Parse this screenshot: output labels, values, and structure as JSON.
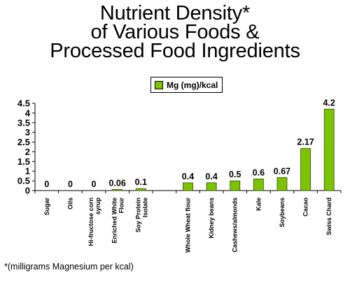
{
  "chart_data": {
    "type": "bar",
    "title": [
      "Nutrient Density*",
      "of Various Foods &",
      "Processed Food Ingredients"
    ],
    "categories": [
      "Sugar",
      "Oils",
      "Hi-fructose corn syrup",
      "Enriched White Flour",
      "Soy Protein Isolate",
      "",
      "Whole Wheat flour",
      "Kidney beans",
      "Cashews/almonds",
      "Kale",
      "Soybeans",
      "Cacao",
      "Swiss Chard"
    ],
    "series": [
      {
        "name": "Mg (mg)/kcal",
        "values": [
          0,
          0,
          0,
          0.06,
          0.1,
          null,
          0.4,
          0.4,
          0.5,
          0.6,
          0.67,
          2.17,
          4.2
        ]
      }
    ],
    "data_labels": [
      "0",
      "0",
      "0",
      "0.06",
      "0.1",
      "",
      "0.4",
      "0.4",
      "0.5",
      "0.6",
      "0.67",
      "2.17",
      "4.2"
    ],
    "yticks": [
      "0",
      "0.5",
      "1",
      "1.5",
      "2",
      "2.5",
      "3",
      "3.5",
      "4",
      "4.5"
    ],
    "ylim": [
      0,
      4.5
    ],
    "grid": false,
    "legend_position": "top-right",
    "bar_color": "#7dc400",
    "bar_stroke": "#2f4a00",
    "footnote": "*(milligrams Magnesium per kcal)"
  }
}
